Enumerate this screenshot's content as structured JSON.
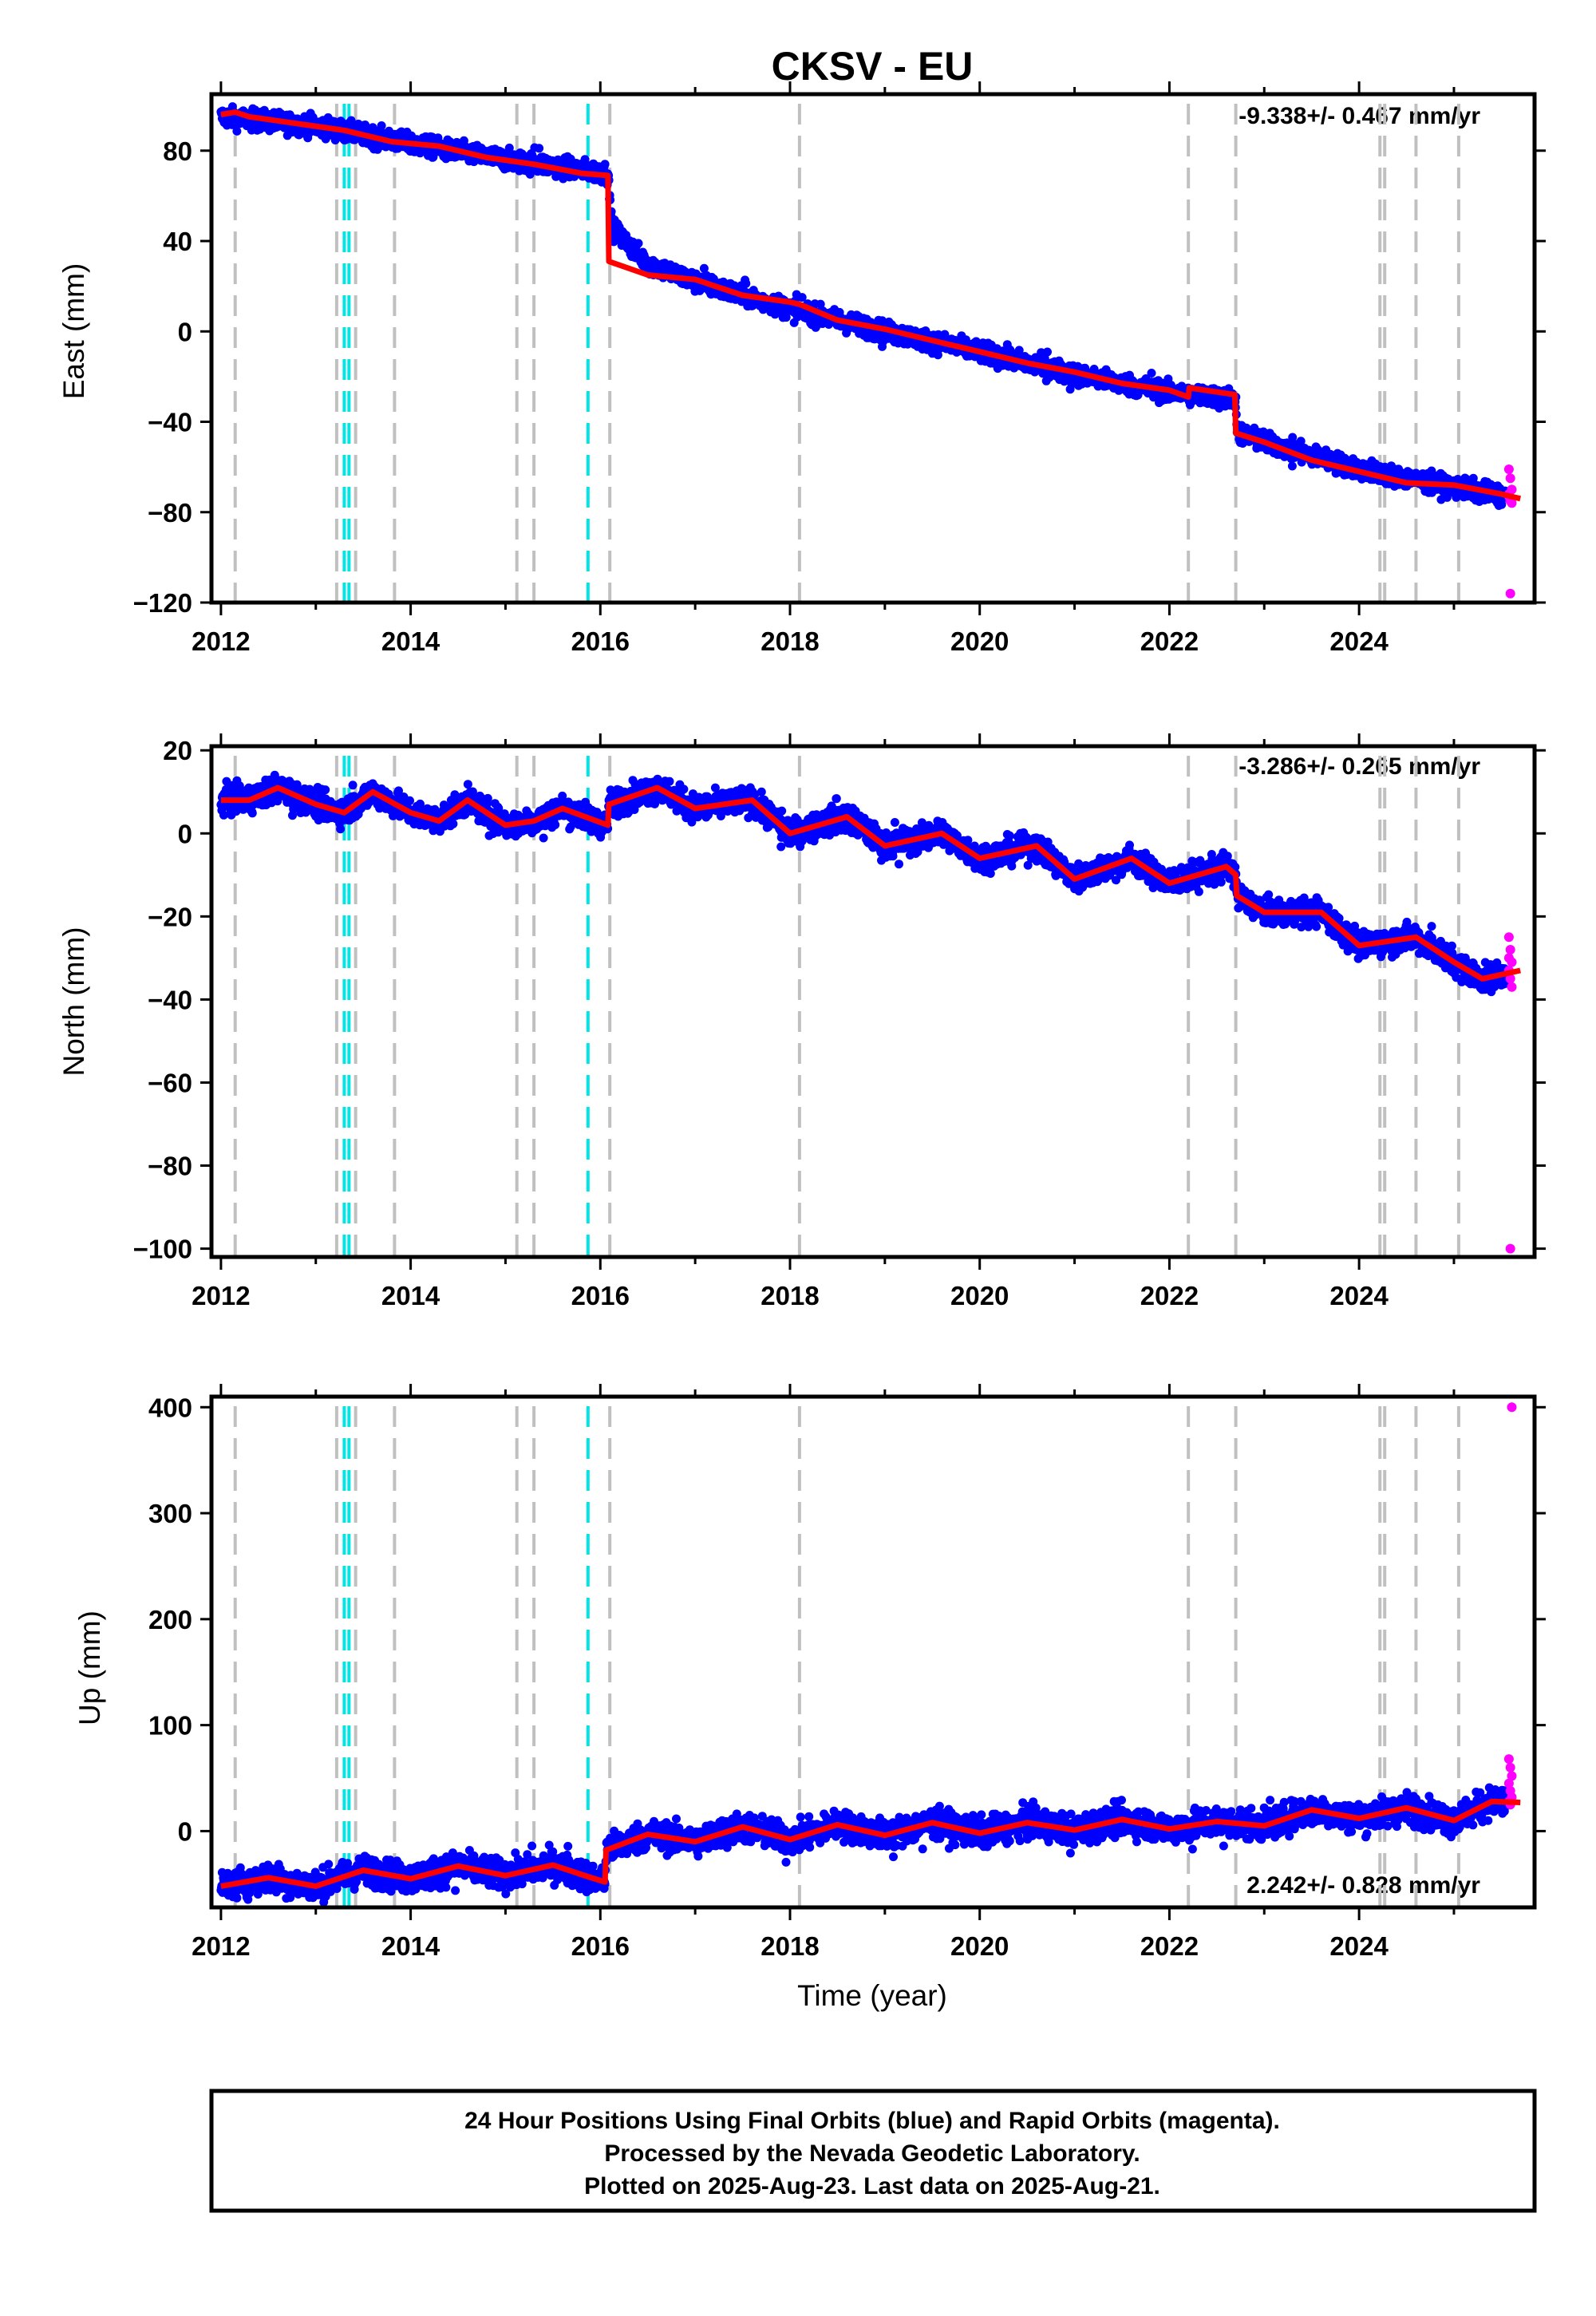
{
  "chart_data": {
    "type": "scatter",
    "title": "CKSV - EU",
    "xlabel": "Time (year)",
    "x_ticks": [
      "2012",
      "2014",
      "2016",
      "2018",
      "2020",
      "2022",
      "2024"
    ],
    "xlim": [
      2011.9,
      2025.85
    ],
    "legend": "none",
    "colors": {
      "final_points": "#0000ff",
      "rapid_points": "#ff00ff",
      "model_line": "#ff0000",
      "equipment_change_lines": "#c0c0c0",
      "earthquake_lines": "#00e5e5"
    },
    "gray_events": [
      2012.15,
      2013.22,
      2013.42,
      2013.83,
      2015.12,
      2015.3,
      2016.1,
      2018.1,
      2022.2,
      2022.7,
      2024.22,
      2024.27,
      2024.6,
      2025.05
    ],
    "cyan_events": [
      2013.3,
      2013.35,
      2015.87
    ],
    "panels": [
      {
        "id": "east",
        "ylabel": "East (mm)",
        "ylim": [
          -120,
          105
        ],
        "y_ticks": [
          80,
          40,
          0,
          -40,
          -80,
          -120
        ],
        "y_tick_labels": [
          "80",
          "40",
          "0",
          "−40",
          "−80",
          "−120"
        ],
        "rate_label": "-9.338+/- 0.467 mm/yr",
        "rate_position": "top-right",
        "model_line": {
          "x": [
            2012.0,
            2012.15,
            2012.3,
            2012.8,
            2013.3,
            2013.8,
            2014.3,
            2014.8,
            2015.3,
            2015.8,
            2016.08,
            2016.09,
            2016.5,
            2017.0,
            2017.5,
            2018.0,
            2018.1,
            2018.5,
            2019.0,
            2019.5,
            2020.0,
            2020.5,
            2021.0,
            2021.5,
            2022.0,
            2022.2,
            2022.21,
            2022.69,
            2022.7,
            2023.0,
            2023.5,
            2024.0,
            2024.5,
            2025.0,
            2025.5,
            2025.7
          ],
          "y": [
            96,
            97,
            95,
            92,
            89,
            84,
            82,
            77,
            74,
            70,
            69,
            31,
            25,
            23,
            16,
            13,
            12,
            5,
            1,
            -4,
            -9,
            -14,
            -18,
            -23,
            -26,
            -29,
            -25,
            -28,
            -45,
            -49,
            -57,
            -62,
            -67,
            -68,
            -72,
            -74
          ]
        },
        "final_trend": {
          "x": [
            2012.0,
            2013.0,
            2014.0,
            2015.0,
            2016.08,
            2016.12,
            2016.5,
            2017.0,
            2018.0,
            2019.0,
            2020.0,
            2021.0,
            2022.0,
            2022.7,
            2022.72,
            2023.0,
            2024.0,
            2025.0,
            2025.6
          ],
          "y": [
            95,
            91,
            83,
            76,
            70,
            46,
            30,
            22,
            10,
            0,
            -9,
            -19,
            -27,
            -30,
            -45,
            -49,
            -61,
            -69,
            -73
          ]
        },
        "rapid_points": [
          -61,
          -65,
          -70,
          -72,
          -75,
          -76,
          -73,
          -116
        ],
        "noise_mm": 2.2
      },
      {
        "id": "north",
        "ylabel": "North (mm)",
        "ylim": [
          -102,
          21
        ],
        "y_ticks": [
          20,
          0,
          -20,
          -40,
          -60,
          -80,
          -100
        ],
        "y_tick_labels": [
          "20",
          "0",
          "−20",
          "−40",
          "−60",
          "−80",
          "−100"
        ],
        "rate_label": "-3.286+/- 0.265 mm/yr",
        "rate_position": "top-right",
        "model_line": {
          "x": [
            2012.0,
            2012.3,
            2012.6,
            2013.0,
            2013.3,
            2013.6,
            2014.0,
            2014.3,
            2014.6,
            2015.0,
            2015.3,
            2015.6,
            2016.08,
            2016.09,
            2016.6,
            2017.0,
            2017.6,
            2018.0,
            2018.6,
            2019.0,
            2019.6,
            2020.0,
            2020.6,
            2021.0,
            2021.6,
            2022.0,
            2022.6,
            2022.7,
            2022.71,
            2023.0,
            2023.6,
            2024.0,
            2024.6,
            2025.0,
            2025.3,
            2025.7
          ],
          "y": [
            8,
            8,
            11,
            7,
            5,
            10,
            5,
            3,
            8,
            2,
            3,
            6,
            2,
            7,
            11,
            6,
            8,
            0,
            4,
            -3,
            0,
            -6,
            -3,
            -11,
            -6,
            -12,
            -8,
            -10,
            -15,
            -19,
            -19,
            -27,
            -25,
            -31,
            -35,
            -33
          ]
        },
        "rapid_points": [
          -25,
          -28,
          -31,
          -33,
          -35,
          -37,
          -30,
          -100
        ],
        "noise_mm": 1.6
      },
      {
        "id": "up",
        "ylabel": "Up (mm)",
        "ylim": [
          -72,
          410
        ],
        "y_ticks": [
          400,
          300,
          200,
          100,
          0
        ],
        "y_tick_labels": [
          "400",
          "300",
          "200",
          "100",
          "0"
        ],
        "rate_label": "2.242+/- 0.828 mm/yr",
        "rate_position": "bottom-right",
        "model_line": {
          "x": [
            2012.0,
            2012.5,
            2013.0,
            2013.5,
            2014.0,
            2014.5,
            2015.0,
            2015.5,
            2015.87,
            2016.05,
            2016.06,
            2016.5,
            2017.0,
            2017.5,
            2018.0,
            2018.5,
            2019.0,
            2019.5,
            2020.0,
            2020.5,
            2021.0,
            2021.5,
            2022.0,
            2022.5,
            2023.0,
            2023.5,
            2024.0,
            2024.5,
            2025.0,
            2025.4,
            2025.7
          ],
          "y": [
            -52,
            -44,
            -52,
            -37,
            -45,
            -33,
            -42,
            -32,
            -43,
            -48,
            -18,
            -3,
            -10,
            4,
            -8,
            6,
            -4,
            8,
            -2,
            8,
            1,
            11,
            2,
            9,
            5,
            20,
            12,
            22,
            10,
            28,
            27
          ]
        },
        "rapid_points": [
          68,
          60,
          52,
          45,
          38,
          32,
          28,
          25,
          400
        ],
        "noise_mm": 7
      }
    ]
  },
  "footer": {
    "line1": "24 Hour Positions Using Final Orbits (blue) and Rapid Orbits (magenta).",
    "line2": "Processed by the Nevada Geodetic Laboratory.",
    "line3": "Plotted on 2025-Aug-23. Last data on 2025-Aug-21."
  }
}
